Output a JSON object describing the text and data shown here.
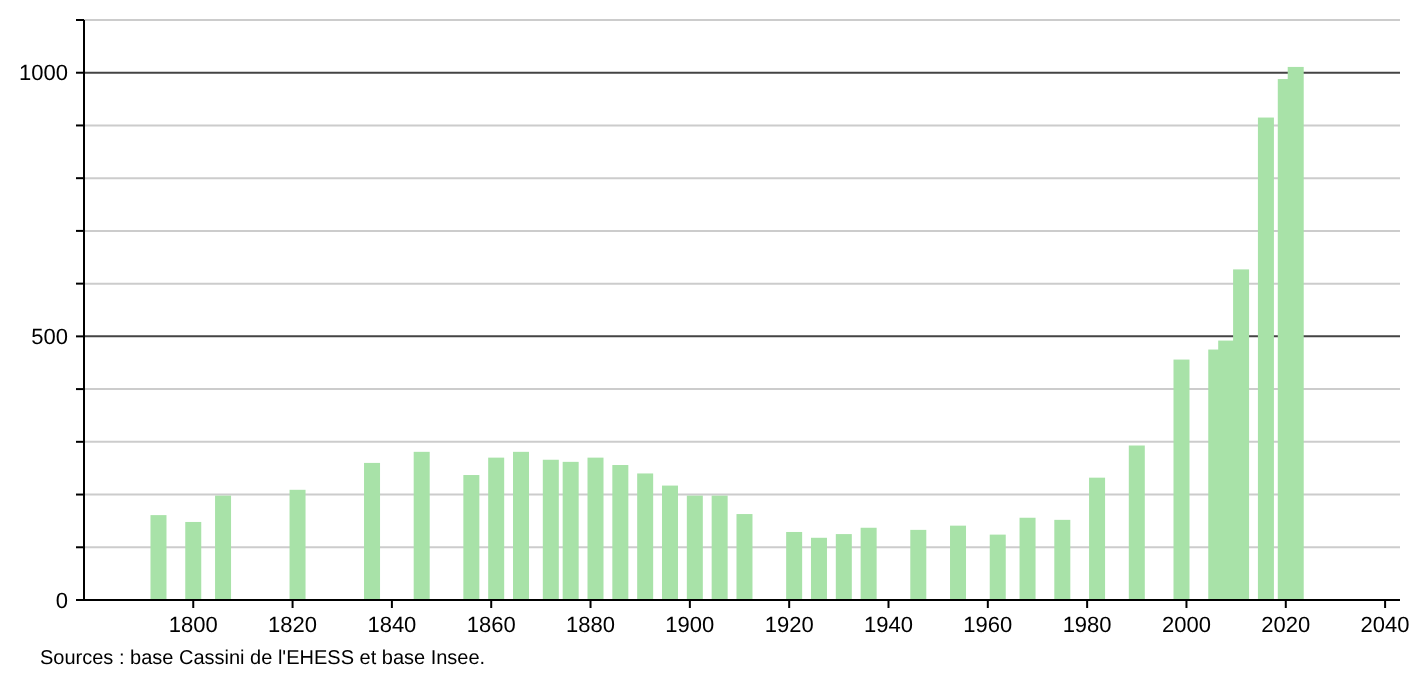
{
  "chart_data": {
    "type": "bar",
    "x": [
      1793,
      1800,
      1806,
      1821,
      1836,
      1846,
      1856,
      1861,
      1866,
      1872,
      1876,
      1881,
      1886,
      1891,
      1896,
      1901,
      1906,
      1911,
      1921,
      1926,
      1931,
      1936,
      1946,
      1954,
      1962,
      1968,
      1975,
      1982,
      1990,
      1999,
      2006,
      2008,
      2011,
      2016,
      2020,
      2022
    ],
    "values": [
      161,
      148,
      198,
      209,
      260,
      281,
      237,
      270,
      281,
      266,
      262,
      270,
      256,
      240,
      217,
      198,
      198,
      163,
      129,
      118,
      125,
      137,
      133,
      141,
      124,
      156,
      152,
      232,
      293,
      456,
      475,
      492,
      627,
      915,
      988,
      1011
    ],
    "color": "#a8e2a8",
    "xlim": [
      1778,
      2043
    ],
    "xticks": [
      1800,
      1820,
      1840,
      1860,
      1880,
      1900,
      1920,
      1940,
      1960,
      1980,
      2000,
      2020,
      2040
    ],
    "ylim": [
      0,
      1100
    ],
    "yticks": [
      0,
      {
        "value": 100,
        "label": null
      },
      {
        "value": 200,
        "label": null
      },
      {
        "value": 300,
        "label": null
      },
      {
        "value": 400,
        "label": null
      },
      500,
      {
        "value": 600,
        "label": null
      },
      {
        "value": 700,
        "label": null
      },
      {
        "value": 800,
        "label": null
      },
      {
        "value": 900,
        "label": null
      },
      1000,
      {
        "value": 1100,
        "label": null
      }
    ],
    "grid": "y",
    "annotations": [
      "Sources : base Cassini de l'EHESS et base Insee."
    ]
  }
}
